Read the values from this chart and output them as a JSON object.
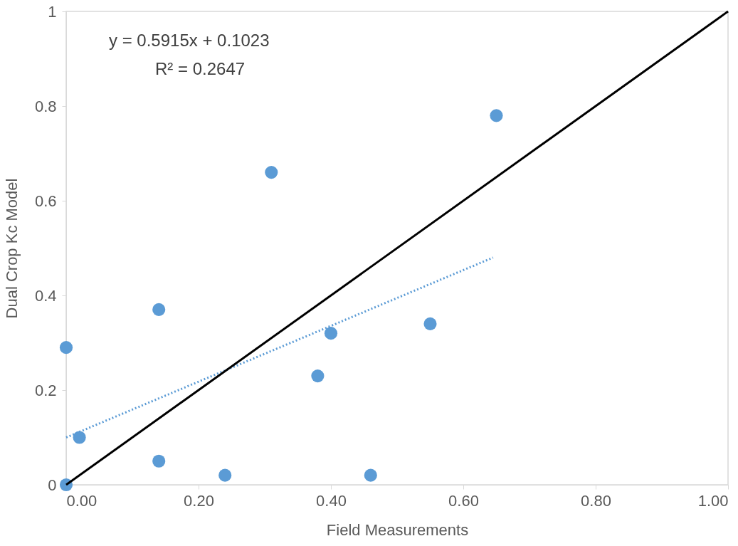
{
  "chart_data": {
    "type": "scatter",
    "xlabel": "Field Measurements",
    "ylabel": "Dual Crop Kc Model",
    "annotations": [
      "y = 0.5915x + 0.1023",
      "R² = 0.2647"
    ],
    "xlim": [
      0,
      1
    ],
    "ylim": [
      0,
      1
    ],
    "xticks": [
      {
        "value": 0,
        "label": "0.00"
      },
      {
        "value": 0.2,
        "label": "0.20"
      },
      {
        "value": 0.4,
        "label": "0.40"
      },
      {
        "value": 0.6,
        "label": "0.60"
      },
      {
        "value": 0.8,
        "label": "0.80"
      },
      {
        "value": 1,
        "label": "1.00"
      }
    ],
    "yticks": [
      0,
      0.2,
      0.4,
      0.6,
      0.8,
      1
    ],
    "grid": false,
    "series": [
      {
        "color": "#5b9bd5",
        "marker": "circle",
        "x": [
          0,
          0,
          0.02,
          0.14,
          0.14,
          0.24,
          0.31,
          0.38,
          0.4,
          0.46,
          0.55,
          0.65
        ],
        "values": [
          0,
          0.29,
          0.1,
          0.37,
          0.05,
          0.02,
          0.66,
          0.23,
          0.32,
          0.02,
          0.34,
          0.78
        ]
      },
      {
        "type": "line",
        "color": "#5b9bd5",
        "marker": "none",
        "line_style": "dotted",
        "x": [
          0,
          0.645
        ],
        "values": [
          0.1,
          0.48
        ]
      },
      {
        "type": "line",
        "color": "#000000",
        "marker": "none",
        "line_style": "solid",
        "x": [
          0,
          1
        ],
        "values": [
          0,
          1
        ]
      }
    ]
  }
}
